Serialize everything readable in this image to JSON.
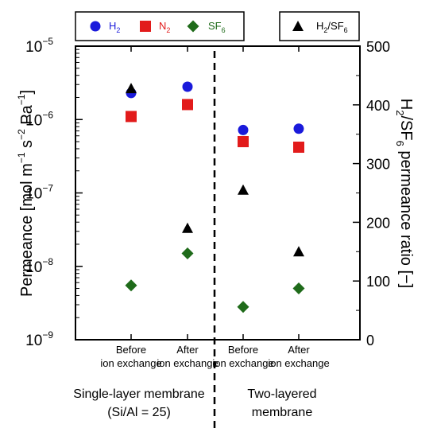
{
  "chart_data": {
    "type": "scatter",
    "categories": [
      {
        "line1": "Before",
        "line2": "ion exchange"
      },
      {
        "line1": "After",
        "line2": "ion exchange"
      },
      {
        "line1": "Before",
        "line2": "ion exchange"
      },
      {
        "line1": "After",
        "line2": "ion exchange"
      }
    ],
    "groups": [
      {
        "line1": "Single-layer membrane",
        "line2": "(Si/Al = 25)"
      },
      {
        "line1": "Two-layered",
        "line2": "membrane"
      }
    ],
    "left_axis": {
      "label_main": "Permeance [mol m",
      "label_parts": [
        {
          "text": "−1",
          "sup": true
        },
        {
          "text": " s",
          "sup": false
        },
        {
          "text": "−2",
          "sup": true
        },
        {
          "text": " Pa",
          "sup": false
        },
        {
          "text": "−1",
          "sup": true
        },
        {
          "text": "]",
          "sup": false
        }
      ],
      "scale": "log",
      "range": [
        1e-09,
        1e-05
      ],
      "ticks": [
        {
          "value": 1e-05,
          "base": "10",
          "exp": "−5"
        },
        {
          "value": 1e-06,
          "base": "10",
          "exp": "−6"
        },
        {
          "value": 1e-07,
          "base": "10",
          "exp": "−7"
        },
        {
          "value": 1e-08,
          "base": "10",
          "exp": "−8"
        },
        {
          "value": 1e-09,
          "base": "10",
          "exp": "−9"
        }
      ]
    },
    "right_axis": {
      "label_parts": [
        {
          "text": "H",
          "sub": false
        },
        {
          "text": "2",
          "sub": true
        },
        {
          "text": "/SF",
          "sub": false
        },
        {
          "text": "6",
          "sub": true
        },
        {
          "text": " permeance ratio [−]",
          "sub": false
        }
      ],
      "scale": "linear",
      "range": [
        0,
        500
      ],
      "ticks": [
        "0",
        "100",
        "200",
        "300",
        "400",
        "500"
      ]
    },
    "legend_left": [
      {
        "name": "H",
        "sub": "2",
        "marker": "circle",
        "color": "#1a1adb",
        "text_color": "#1a1adb"
      },
      {
        "name": "N",
        "sub": "2",
        "marker": "square",
        "color": "#e21b1b",
        "text_color": "#e21b1b"
      },
      {
        "name": "SF",
        "sub": "6",
        "marker": "diamond",
        "color": "#1f6b1a",
        "text_color": "#1f6b1a"
      }
    ],
    "legend_right": [
      {
        "name": "H",
        "sub": "2",
        "mid": "/SF",
        "sub2": "6",
        "marker": "triangle",
        "color": "#000000",
        "text_color": "#000000"
      }
    ],
    "series": [
      {
        "key": "H2",
        "axis": "left",
        "marker": "circle",
        "color": "#1a1adb",
        "values": [
          2.3e-06,
          2.8e-06,
          7.2e-07,
          7.5e-07
        ]
      },
      {
        "key": "N2",
        "axis": "left",
        "marker": "square",
        "color": "#e21b1b",
        "values": [
          1.1e-06,
          1.6e-06,
          5e-07,
          4.2e-07
        ]
      },
      {
        "key": "SF6",
        "axis": "left",
        "marker": "diamond",
        "color": "#1f6b1a",
        "values": [
          5.5e-09,
          1.5e-08,
          2.8e-09,
          5e-09
        ]
      },
      {
        "key": "H2/SF6",
        "axis": "right",
        "marker": "triangle",
        "color": "#000000",
        "values": [
          428,
          190,
          255,
          150
        ]
      }
    ]
  }
}
